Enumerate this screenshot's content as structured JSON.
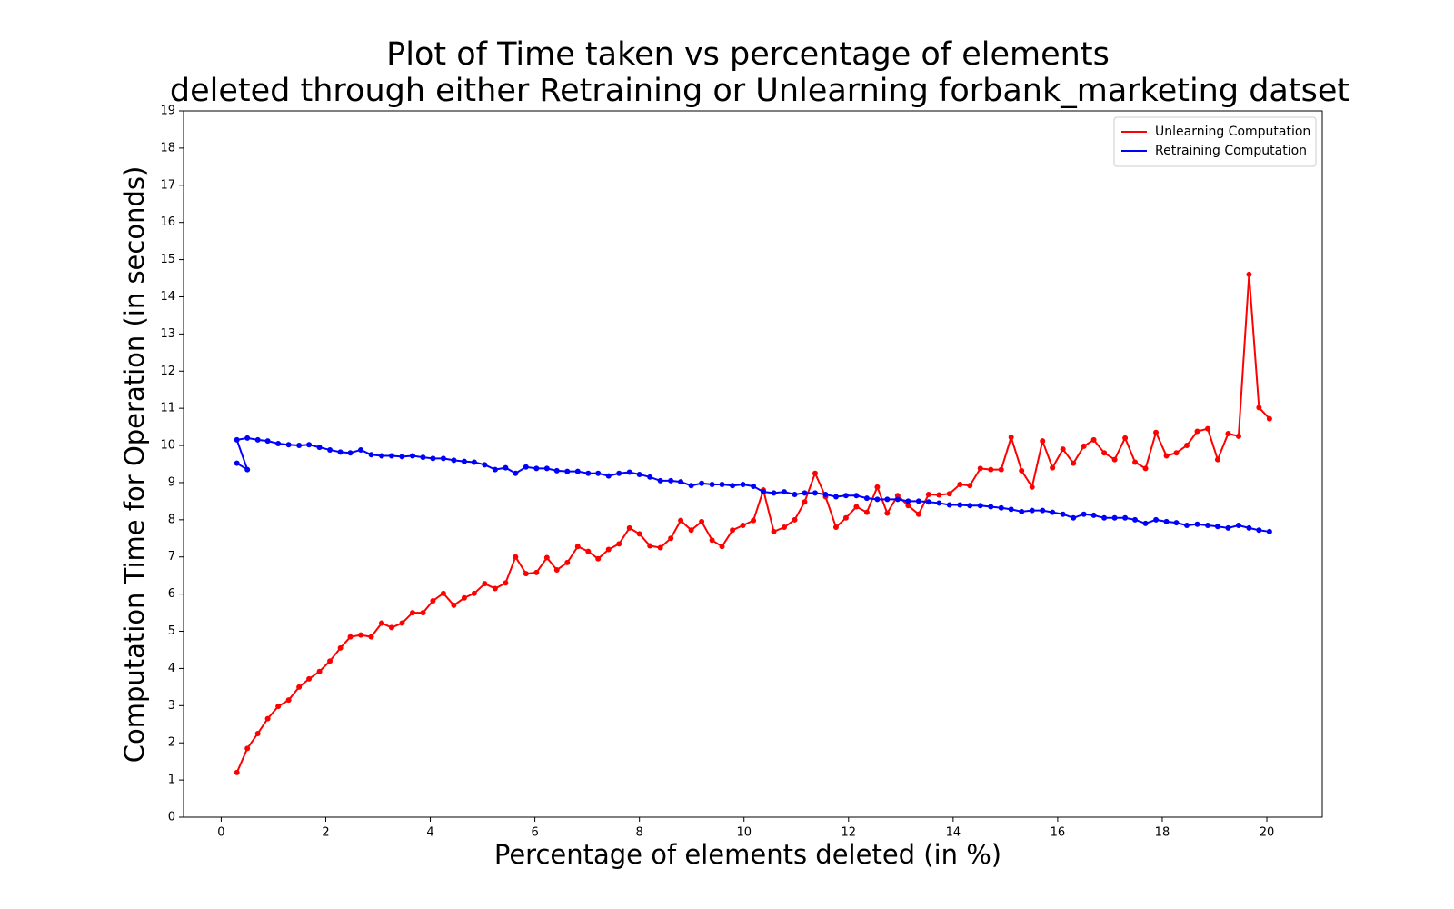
{
  "chart_data": {
    "type": "line",
    "title": "Plot of Time taken vs  percentage of elements",
    "subtitle": "deleted through either Retraining or Unlearning forbank_marketing datset",
    "x_label": "Percentage of elements deleted (in %)",
    "y_label": "Computation Time for Operation (in seconds)",
    "xlim": [
      -0.72,
      21.06
    ],
    "ylim": [
      0,
      19
    ],
    "xticks": [
      0,
      2,
      4,
      6,
      8,
      10,
      12,
      14,
      16,
      18,
      20
    ],
    "yticks": [
      0,
      1,
      2,
      3,
      4,
      5,
      6,
      7,
      8,
      9,
      10,
      11,
      12,
      13,
      14,
      15,
      16,
      17,
      18,
      19
    ],
    "legend": "upper right",
    "series": [
      {
        "name": "Unlearning Computation",
        "color": "#ff0000",
        "x": [
          0.3,
          0.5,
          0.7,
          0.89,
          1.09,
          1.29,
          1.49,
          1.68,
          1.88,
          2.08,
          2.28,
          2.47,
          2.67,
          2.87,
          3.07,
          3.26,
          3.46,
          3.66,
          3.86,
          4.05,
          4.25,
          4.45,
          4.65,
          4.84,
          5.04,
          5.24,
          5.44,
          5.63,
          5.83,
          6.03,
          6.23,
          6.42,
          6.62,
          6.82,
          7.02,
          7.21,
          7.41,
          7.61,
          7.81,
          8.0,
          8.2,
          8.4,
          8.6,
          8.79,
          8.99,
          9.19,
          9.39,
          9.58,
          9.78,
          9.98,
          10.18,
          10.37,
          10.57,
          10.77,
          10.97,
          11.16,
          11.36,
          11.56,
          11.76,
          11.95,
          12.15,
          12.35,
          12.55,
          12.74,
          12.94,
          13.14,
          13.34,
          13.53,
          13.73,
          13.93,
          14.13,
          14.32,
          14.52,
          14.72,
          14.92,
          15.11,
          15.31,
          15.51,
          15.71,
          15.9,
          16.1,
          16.3,
          16.5,
          16.69,
          16.89,
          17.09,
          17.29,
          17.48,
          17.68,
          17.88,
          18.08,
          18.27,
          18.47,
          18.67,
          18.87,
          19.06,
          19.26,
          19.46,
          19.66,
          19.85,
          20.05
        ],
        "values": [
          1.2,
          1.85,
          2.25,
          2.65,
          2.98,
          3.15,
          3.5,
          3.72,
          3.92,
          4.2,
          4.55,
          4.85,
          4.9,
          4.85,
          5.22,
          5.1,
          5.22,
          5.5,
          5.5,
          5.82,
          6.02,
          5.7,
          5.9,
          6.02,
          6.28,
          6.15,
          6.3,
          7.0,
          6.55,
          6.58,
          6.98,
          6.65,
          6.85,
          7.28,
          7.15,
          6.95,
          7.2,
          7.35,
          7.78,
          7.62,
          7.3,
          7.25,
          7.5,
          7.98,
          7.72,
          7.95,
          7.45,
          7.28,
          7.72,
          7.85,
          7.98,
          8.8,
          7.68,
          7.8,
          8.0,
          8.48,
          9.25,
          8.62,
          7.8,
          8.05,
          8.35,
          8.2,
          8.88,
          8.18,
          8.65,
          8.38,
          8.15,
          8.68,
          8.67,
          8.7,
          8.95,
          8.92,
          9.38,
          9.35,
          9.35,
          10.22,
          9.32,
          8.88,
          10.12,
          9.4,
          9.9,
          9.52,
          9.98,
          10.15,
          9.8,
          9.62,
          10.2,
          9.55,
          9.38,
          10.35,
          9.72,
          9.8,
          10.0,
          10.38,
          10.45,
          9.62,
          10.32,
          10.25,
          14.6,
          11.02,
          10.72
        ]
      },
      {
        "name": "Retraining Computation",
        "color": "#0000ff",
        "x": [
          0.3,
          0.5,
          0.3,
          0.5,
          0.7,
          0.89,
          1.09,
          1.29,
          1.49,
          1.68,
          1.88,
          2.08,
          2.28,
          2.47,
          2.67,
          2.87,
          3.07,
          3.26,
          3.46,
          3.66,
          3.86,
          4.05,
          4.25,
          4.45,
          4.65,
          4.84,
          5.04,
          5.24,
          5.44,
          5.63,
          5.83,
          6.03,
          6.23,
          6.42,
          6.62,
          6.82,
          7.02,
          7.21,
          7.41,
          7.61,
          7.81,
          8.0,
          8.2,
          8.4,
          8.6,
          8.79,
          8.99,
          9.19,
          9.39,
          9.58,
          9.78,
          9.98,
          10.18,
          10.37,
          10.57,
          10.77,
          10.97,
          11.16,
          11.36,
          11.56,
          11.76,
          11.95,
          12.15,
          12.35,
          12.55,
          12.74,
          12.94,
          13.14,
          13.34,
          13.53,
          13.73,
          13.93,
          14.13,
          14.32,
          14.52,
          14.72,
          14.92,
          15.11,
          15.31,
          15.51,
          15.71,
          15.9,
          16.1,
          16.3,
          16.5,
          16.69,
          16.89,
          17.09,
          17.29,
          17.48,
          17.68,
          17.88,
          18.08,
          18.27,
          18.47,
          18.67,
          18.87,
          19.06,
          19.26,
          19.46,
          19.66,
          19.85,
          20.05
        ],
        "values": [
          9.52,
          9.35,
          10.15,
          10.2,
          10.15,
          10.12,
          10.05,
          10.02,
          10.0,
          10.02,
          9.95,
          9.88,
          9.82,
          9.8,
          9.88,
          9.75,
          9.72,
          9.72,
          9.7,
          9.72,
          9.68,
          9.65,
          9.65,
          9.6,
          9.57,
          9.55,
          9.48,
          9.35,
          9.4,
          9.25,
          9.42,
          9.38,
          9.38,
          9.32,
          9.3,
          9.3,
          9.25,
          9.25,
          9.18,
          9.25,
          9.28,
          9.22,
          9.15,
          9.05,
          9.05,
          9.02,
          8.92,
          8.98,
          8.95,
          8.95,
          8.92,
          8.95,
          8.9,
          8.75,
          8.72,
          8.75,
          8.68,
          8.72,
          8.72,
          8.68,
          8.62,
          8.65,
          8.65,
          8.58,
          8.55,
          8.55,
          8.55,
          8.5,
          8.5,
          8.48,
          8.45,
          8.4,
          8.4,
          8.38,
          8.38,
          8.35,
          8.32,
          8.28,
          8.22,
          8.25,
          8.25,
          8.2,
          8.15,
          8.05,
          8.15,
          8.12,
          8.05,
          8.05,
          8.05,
          8.0,
          7.9,
          8.0,
          7.95,
          7.92,
          7.85,
          7.88,
          7.85,
          7.82,
          7.78,
          7.85,
          7.78,
          7.72,
          7.68
        ]
      }
    ]
  }
}
